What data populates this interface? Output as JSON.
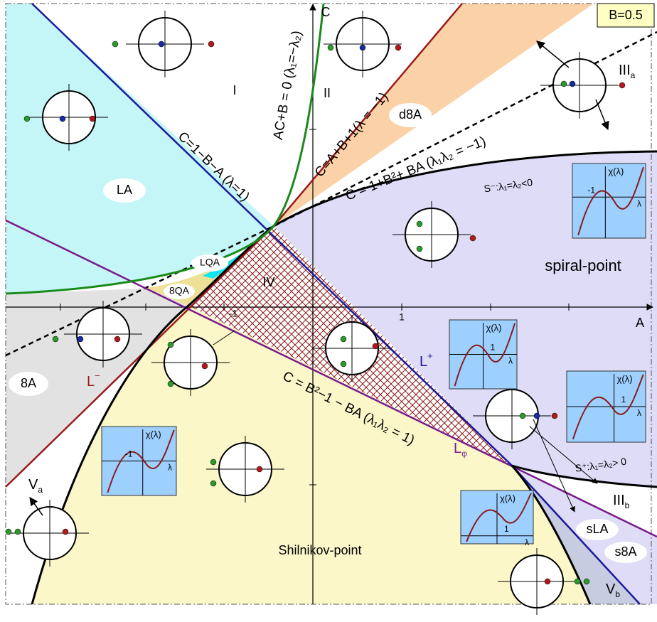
{
  "parameter": "B=0.5",
  "axes": {
    "x_label": "A",
    "y_label": "C",
    "x_ticks": [
      "-1",
      "1"
    ]
  },
  "curves": [
    "C=1−B−A (λ=1)",
    "AC+B = 0 (λ₁=−λ₂)",
    "C=A+B+1(λ = −1)",
    "C = 1+B²+ BA  (λ₁λ₂ = −1)",
    "C = B²−1 − BA (λ₁λ₂ = 1)",
    "S⁻:λ₁=λ₂<0",
    "S⁺:λ₁=λ₂> 0"
  ],
  "regions": [
    "I",
    "II",
    "IV",
    "LA",
    "d8A",
    "LQA",
    "8QA",
    "8A",
    "sLA",
    "s8A",
    "spiral-point",
    "Shilnikov-point"
  ],
  "subscripted_labels": [
    {
      "main": "III",
      "sub": "a"
    },
    {
      "main": "III",
      "sub": "b"
    },
    {
      "main": "V",
      "sub": "a"
    },
    {
      "main": "V",
      "sub": "b"
    },
    {
      "main": "L",
      "sub": "φ"
    }
  ],
  "superscripted_labels": [
    {
      "main": "L",
      "sup": "−"
    },
    {
      "main": "L",
      "sup": "+"
    }
  ],
  "insets": [
    {
      "ylabel": "χ(λ)",
      "tick": "-1",
      "xlabel": "λ"
    },
    {
      "ylabel": "χ(λ)",
      "tick": "1",
      "xlabel": "λ"
    },
    {
      "ylabel": "χ(λ)",
      "tick": "1",
      "xlabel": "λ"
    },
    {
      "ylabel": "χ(λ)",
      "tick": "-1",
      "xlabel": "λ"
    },
    {
      "ylabel": "χ(λ)",
      "tick": "1",
      "xlabel": "λ"
    }
  ]
}
